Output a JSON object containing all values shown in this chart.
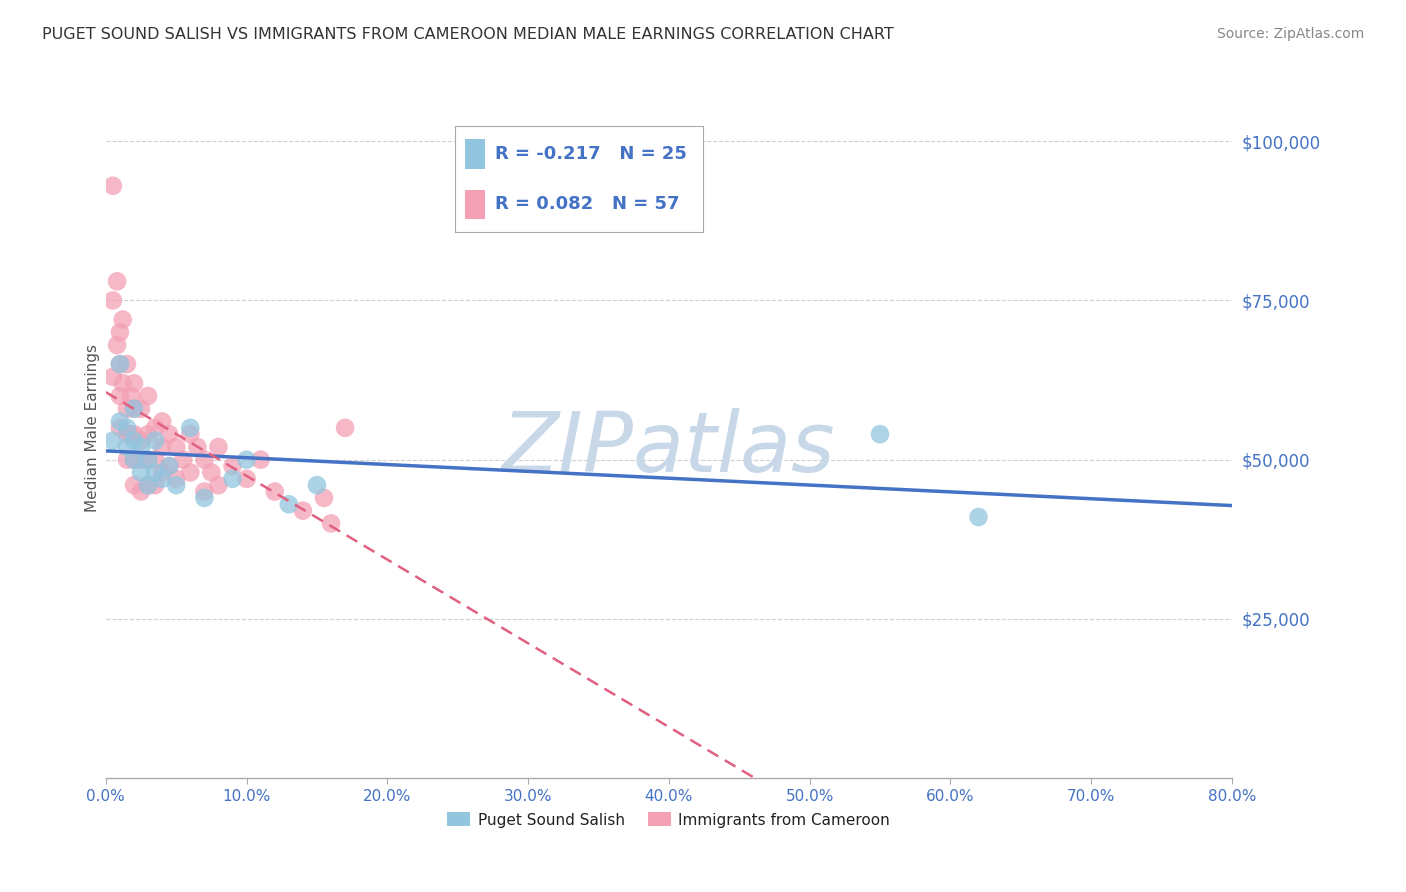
{
  "title": "PUGET SOUND SALISH VS IMMIGRANTS FROM CAMEROON MEDIAN MALE EARNINGS CORRELATION CHART",
  "source": "Source: ZipAtlas.com",
  "ylabel": "Median Male Earnings",
  "xlim": [
    0.0,
    0.8
  ],
  "ylim": [
    0,
    110000
  ],
  "yticks": [
    25000,
    50000,
    75000,
    100000
  ],
  "ytick_labels": [
    "$25,000",
    "$50,000",
    "$75,000",
    "$100,000"
  ],
  "xtick_labels": [
    "0.0%",
    "10.0%",
    "20.0%",
    "30.0%",
    "40.0%",
    "50.0%",
    "60.0%",
    "70.0%",
    "80.0%"
  ],
  "xticks": [
    0.0,
    0.1,
    0.2,
    0.3,
    0.4,
    0.5,
    0.6,
    0.7,
    0.8
  ],
  "series1_label": "Puget Sound Salish",
  "series1_color": "#92c5de",
  "series1_R": -0.217,
  "series1_N": 25,
  "series2_label": "Immigrants from Cameroon",
  "series2_color": "#f4a0b5",
  "series2_R": 0.082,
  "series2_N": 57,
  "series1_x": [
    0.005,
    0.01,
    0.01,
    0.015,
    0.015,
    0.02,
    0.02,
    0.02,
    0.025,
    0.025,
    0.03,
    0.03,
    0.035,
    0.035,
    0.04,
    0.045,
    0.05,
    0.06,
    0.07,
    0.09,
    0.1,
    0.13,
    0.15,
    0.55,
    0.62
  ],
  "series1_y": [
    53000,
    56000,
    65000,
    52000,
    55000,
    50000,
    53000,
    58000,
    48000,
    52000,
    46000,
    50000,
    48000,
    53000,
    47000,
    49000,
    46000,
    55000,
    44000,
    47000,
    50000,
    43000,
    46000,
    54000,
    41000
  ],
  "series2_x": [
    0.005,
    0.005,
    0.005,
    0.008,
    0.008,
    0.01,
    0.01,
    0.01,
    0.01,
    0.012,
    0.012,
    0.015,
    0.015,
    0.015,
    0.015,
    0.018,
    0.018,
    0.02,
    0.02,
    0.02,
    0.02,
    0.02,
    0.025,
    0.025,
    0.025,
    0.025,
    0.03,
    0.03,
    0.03,
    0.03,
    0.035,
    0.035,
    0.035,
    0.04,
    0.04,
    0.04,
    0.045,
    0.045,
    0.05,
    0.05,
    0.055,
    0.06,
    0.06,
    0.065,
    0.07,
    0.07,
    0.075,
    0.08,
    0.08,
    0.09,
    0.1,
    0.11,
    0.12,
    0.14,
    0.155,
    0.16,
    0.17
  ],
  "series2_y": [
    93000,
    75000,
    63000,
    78000,
    68000,
    70000,
    65000,
    60000,
    55000,
    72000,
    62000,
    65000,
    58000,
    54000,
    50000,
    60000,
    54000,
    62000,
    58000,
    54000,
    50000,
    46000,
    58000,
    53000,
    50000,
    45000,
    60000,
    54000,
    50000,
    46000,
    55000,
    50000,
    46000,
    56000,
    52000,
    48000,
    54000,
    49000,
    52000,
    47000,
    50000,
    54000,
    48000,
    52000,
    50000,
    45000,
    48000,
    52000,
    46000,
    49000,
    47000,
    50000,
    45000,
    42000,
    44000,
    40000,
    55000
  ],
  "background_color": "#ffffff",
  "grid_color": "#d0d0d0",
  "title_color": "#333333",
  "axis_label_color": "#555555",
  "ytick_color": "#4472c4",
  "xtick_color": "#4472c4",
  "legend_text_color": "#4472c4",
  "line1_color": "#4472c4",
  "line2_color": "#e06080",
  "watermark_text": "ZIPatlas",
  "watermark_color": "#c8d8e8"
}
